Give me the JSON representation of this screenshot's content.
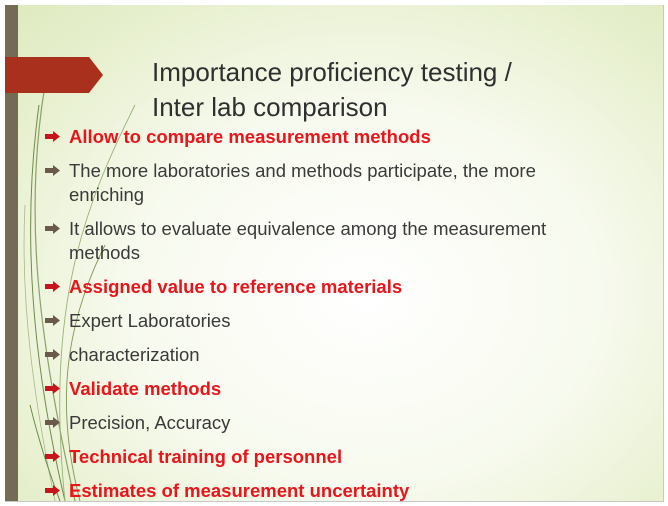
{
  "slide": {
    "title_line1": "Importance proficiency testing /",
    "title_line2": "Inter lab comparison",
    "bullets": [
      {
        "text": "Allow to compare measurement methods",
        "emphasis": true
      },
      {
        "text": "The more laboratories and methods participate, the more enriching",
        "emphasis": false
      },
      {
        "text": "It allows to evaluate equivalence among the measurement methods",
        "emphasis": false
      },
      {
        "text": "Assigned value to reference materials",
        "emphasis": true
      },
      {
        "text": "Expert Laboratories",
        "emphasis": false
      },
      {
        "text": "characterization",
        "emphasis": false
      },
      {
        "text": "Validate methods",
        "emphasis": true
      },
      {
        "text": "Precision, Accuracy",
        "emphasis": false
      },
      {
        "text": "Technical training of personnel",
        "emphasis": true
      },
      {
        "text": "Estimates of measurement uncertainty",
        "emphasis": true
      }
    ]
  },
  "colors": {
    "accent_red": "#e8151b",
    "title_arrow": "#a8301c",
    "sidebar": "#736b54",
    "body_text": "#3a3a3a"
  }
}
